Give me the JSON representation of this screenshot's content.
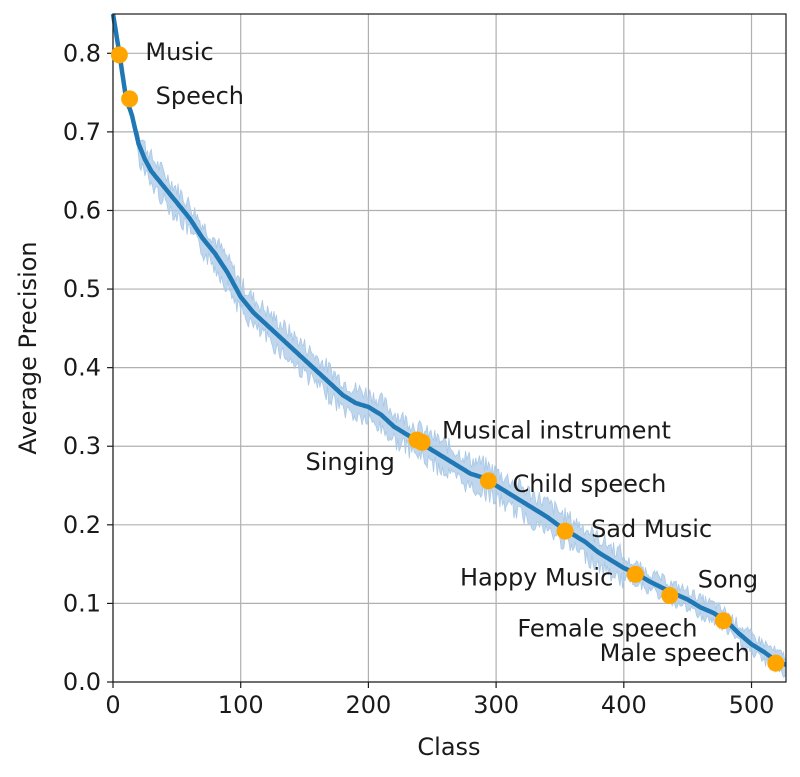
{
  "chart_data": {
    "type": "line",
    "xlabel": "Class",
    "ylabel": "Average Precision",
    "xlim": [
      0,
      527
    ],
    "ylim": [
      0,
      0.85
    ],
    "xticks": [
      0,
      100,
      200,
      300,
      400,
      500
    ],
    "xtick_labels": [
      "0",
      "100",
      "200",
      "300",
      "400",
      "500"
    ],
    "yticks": [
      0,
      0.1,
      0.2,
      0.3,
      0.4,
      0.5,
      0.6,
      0.7,
      0.8
    ],
    "ytick_labels": [
      "0.0",
      "0.1",
      "0.2",
      "0.3",
      "0.4",
      "0.5",
      "0.6",
      "0.7",
      "0.8"
    ],
    "grid": true,
    "colors": {
      "line": "#1f77b4",
      "band": "#a9c8e6",
      "marker": "#ffa500",
      "grid": "#b0b0b0"
    },
    "mean_curve": {
      "x": [
        0,
        5,
        10,
        15,
        20,
        25,
        30,
        40,
        50,
        60,
        70,
        80,
        90,
        100,
        110,
        120,
        130,
        140,
        150,
        160,
        170,
        180,
        190,
        200,
        210,
        220,
        230,
        240,
        250,
        260,
        270,
        280,
        290,
        300,
        310,
        320,
        330,
        340,
        350,
        360,
        370,
        380,
        390,
        400,
        410,
        420,
        430,
        440,
        450,
        460,
        470,
        480,
        490,
        500,
        510,
        520,
        527
      ],
      "y": [
        0.85,
        0.8,
        0.745,
        0.72,
        0.685,
        0.665,
        0.65,
        0.63,
        0.61,
        0.59,
        0.565,
        0.545,
        0.52,
        0.49,
        0.47,
        0.455,
        0.44,
        0.425,
        0.41,
        0.395,
        0.38,
        0.365,
        0.355,
        0.35,
        0.34,
        0.325,
        0.315,
        0.305,
        0.295,
        0.285,
        0.275,
        0.265,
        0.26,
        0.25,
        0.24,
        0.23,
        0.22,
        0.21,
        0.198,
        0.188,
        0.178,
        0.165,
        0.155,
        0.145,
        0.138,
        0.128,
        0.12,
        0.112,
        0.105,
        0.095,
        0.088,
        0.078,
        0.062,
        0.048,
        0.038,
        0.026,
        0.022
      ]
    },
    "highlighted_points": [
      {
        "label": "Music",
        "x": 5,
        "y": 0.798,
        "label_anchor": "right"
      },
      {
        "label": "Speech",
        "x": 13,
        "y": 0.742,
        "label_anchor": "right"
      },
      {
        "label": "Singing",
        "x": 238,
        "y": 0.308,
        "label_anchor": "left"
      },
      {
        "label": "Musical instrument",
        "x": 242,
        "y": 0.305,
        "label_anchor": "right"
      },
      {
        "label": "Child speech",
        "x": 294,
        "y": 0.256,
        "label_anchor": "right"
      },
      {
        "label": "Sad Music",
        "x": 354,
        "y": 0.192,
        "label_anchor": "right"
      },
      {
        "label": "Happy Music",
        "x": 409,
        "y": 0.137,
        "label_anchor": "left"
      },
      {
        "label": "Song",
        "x": 436,
        "y": 0.11,
        "label_anchor": "right"
      },
      {
        "label": "Female speech",
        "x": 478,
        "y": 0.078,
        "label_anchor": "left"
      },
      {
        "label": "Male speech",
        "x": 519,
        "y": 0.024,
        "label_anchor": "left"
      }
    ]
  }
}
